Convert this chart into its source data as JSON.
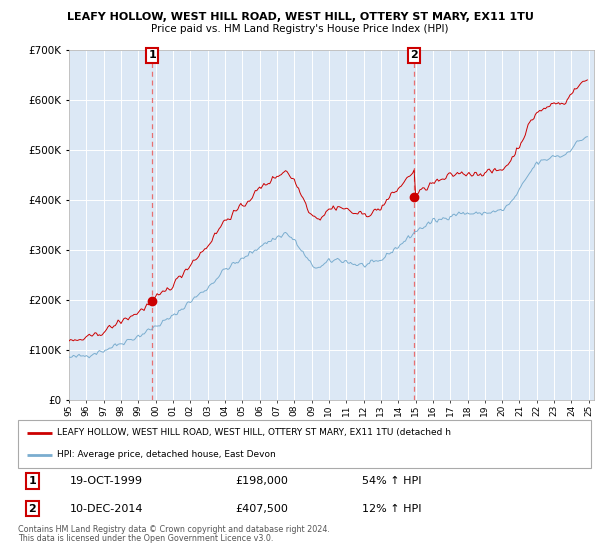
{
  "title1": "LEAFY HOLLOW, WEST HILL ROAD, WEST HILL, OTTERY ST MARY, EX11 1TU",
  "title2": "Price paid vs. HM Land Registry's House Price Index (HPI)",
  "legend_line1": "LEAFY HOLLOW, WEST HILL ROAD, WEST HILL, OTTERY ST MARY, EX11 1TU (detached h",
  "legend_line2": "HPI: Average price, detached house, East Devon",
  "note1": "Contains HM Land Registry data © Crown copyright and database right 2024.",
  "note2": "This data is licensed under the Open Government Licence v3.0.",
  "transaction1_date": "19-OCT-1999",
  "transaction1_price": "£198,000",
  "transaction1_hpi": "54% ↑ HPI",
  "transaction2_date": "10-DEC-2014",
  "transaction2_price": "£407,500",
  "transaction2_hpi": "12% ↑ HPI",
  "red_color": "#cc0000",
  "blue_color": "#7aadcf",
  "dashed_red": "#e87070",
  "background_chart": "#dce8f5",
  "ylim": [
    0,
    700000
  ],
  "yticks": [
    0,
    100000,
    200000,
    300000,
    400000,
    500000,
    600000,
    700000
  ],
  "transaction1_x": 1999.8,
  "transaction1_y": 198000,
  "transaction2_x": 2014.92,
  "transaction2_y": 407500,
  "vline1_x": 1999.8,
  "vline2_x": 2014.92,
  "xmin": 1995.0,
  "xmax": 2025.3,
  "noise_seed": 42,
  "hpi_base_months": 360,
  "hpi_start_year": 1995,
  "hpi_end_year": 2025
}
